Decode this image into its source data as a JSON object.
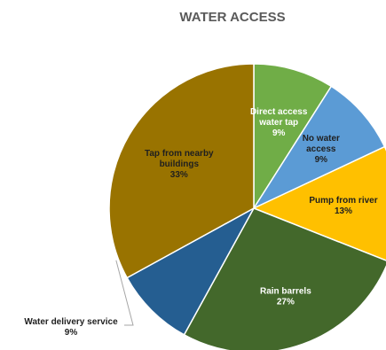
{
  "chart_data": {
    "type": "pie",
    "title": "WATER ACCESS",
    "slices": [
      {
        "label": "Direct access water tap",
        "value": 9,
        "value_label": "9%",
        "color": "#70ad47",
        "label_color": "#ffffff"
      },
      {
        "label": "No water access",
        "value": 9,
        "value_label": "9%",
        "color": "#5b9bd5",
        "label_color": "#1f1f1f"
      },
      {
        "label": "Pump from river",
        "value": 13,
        "value_label": "13%",
        "color": "#ffc000",
        "label_color": "#1f1f1f"
      },
      {
        "label": "Rain barrels",
        "value": 27,
        "value_label": "27%",
        "color": "#43682b",
        "label_color": "#ffffff"
      },
      {
        "label": "Water delivery service",
        "value": 9,
        "value_label": "9%",
        "color": "#255e91",
        "label_color": "#1f1f1f"
      },
      {
        "label": "Tap from nearby buildings",
        "value": 33,
        "value_label": "33%",
        "color": "#997300",
        "label_color": "#1f1f1f"
      }
    ],
    "legend": "none"
  }
}
